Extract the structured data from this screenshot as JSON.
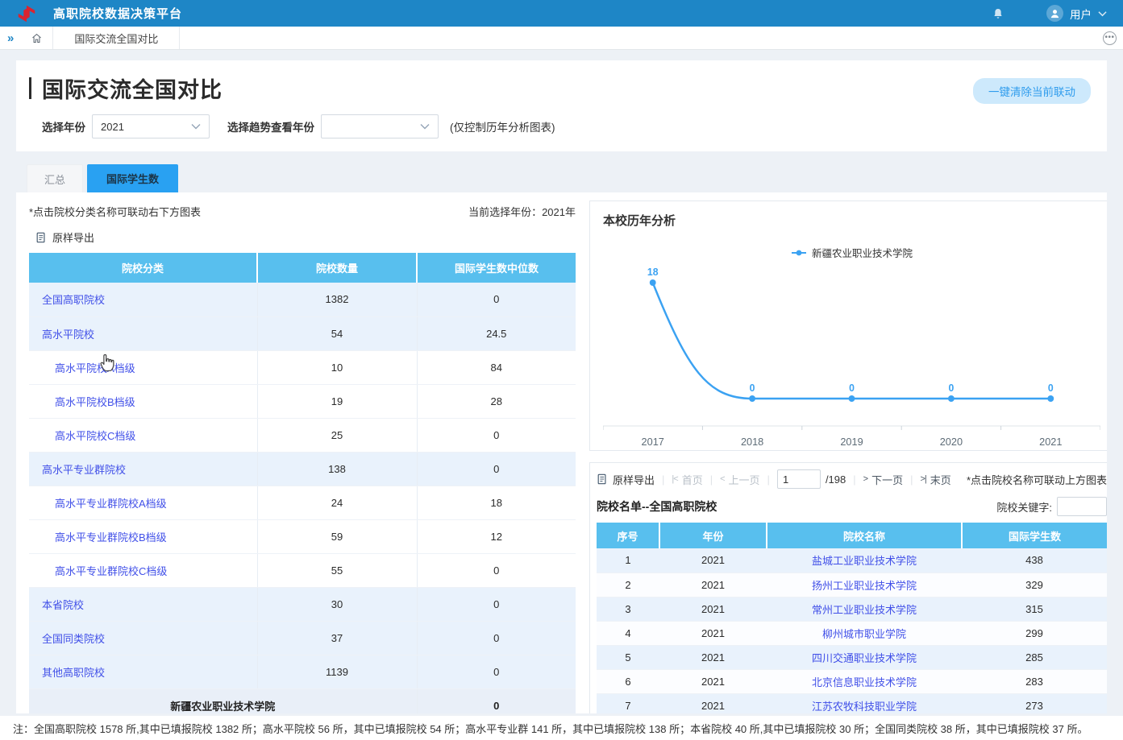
{
  "header": {
    "app_title": "高职院校数据决策平台",
    "user_label": "用户"
  },
  "nav": {
    "tab": "国际交流全国对比"
  },
  "page": {
    "title": "国际交流全国对比",
    "clear_button": "一键清除当前联动",
    "year_filter_label": "选择年份",
    "year_filter_value": "2021",
    "trend_filter_label": "选择趋势查看年份",
    "trend_filter_value": "",
    "trend_filter_hint": "(仅控制历年分析图表)"
  },
  "tabs": [
    {
      "label": "汇总",
      "active": false
    },
    {
      "label": "国际学生数",
      "active": true
    }
  ],
  "left_panel": {
    "note": "*点击院校分类名称可联动右下方图表",
    "current_year_label": "当前选择年份：2021年",
    "export_label": "原样导出",
    "table": {
      "headers": [
        "院校分类",
        "院校数量",
        "国际学生数中位数"
      ],
      "rows": [
        {
          "category": "全国高职院校",
          "count": "1382",
          "median": "0",
          "level": 0
        },
        {
          "category": "高水平院校",
          "count": "54",
          "median": "24.5",
          "level": 0
        },
        {
          "category": "高水平院校A档级",
          "count": "10",
          "median": "84",
          "level": 1
        },
        {
          "category": "高水平院校B档级",
          "count": "19",
          "median": "28",
          "level": 1
        },
        {
          "category": "高水平院校C档级",
          "count": "25",
          "median": "0",
          "level": 1
        },
        {
          "category": "高水平专业群院校",
          "count": "138",
          "median": "0",
          "level": 0
        },
        {
          "category": "高水平专业群院校A档级",
          "count": "24",
          "median": "18",
          "level": 1
        },
        {
          "category": "高水平专业群院校B档级",
          "count": "59",
          "median": "12",
          "level": 1
        },
        {
          "category": "高水平专业群院校C档级",
          "count": "55",
          "median": "0",
          "level": 1
        },
        {
          "category": "本省院校",
          "count": "30",
          "median": "0",
          "level": 0
        },
        {
          "category": "全国同类院校",
          "count": "37",
          "median": "0",
          "level": 0
        },
        {
          "category": "其他高职院校",
          "count": "1139",
          "median": "0",
          "level": 0
        }
      ],
      "summary_row": {
        "label": "新疆农业职业技术学院",
        "median": "0"
      }
    }
  },
  "chart_panel": {
    "title": "本校历年分析"
  },
  "chart_data": {
    "type": "line",
    "x": [
      "2017",
      "2018",
      "2019",
      "2020",
      "2021"
    ],
    "series": [
      {
        "name": "新疆农业职业技术学院",
        "values": [
          18,
          0,
          0,
          0,
          0
        ]
      }
    ],
    "title": "本校历年分析",
    "xlabel": "",
    "ylabel": "",
    "legend_position": "top-center",
    "grid": false,
    "smooth": true,
    "point_labels": true,
    "line_color": "#3ba2f2",
    "axis_color": "#dfe5ea",
    "tick_label_color": "#5d6b76"
  },
  "list_panel": {
    "export_label": "原样导出",
    "pager": {
      "first": "首页",
      "prev": "上一页",
      "page": "1",
      "total": "/198",
      "next": "下一页",
      "last": "末页",
      "first_icon": "|<",
      "prev_icon": "<",
      "next_icon": ">",
      "last_icon": ">|"
    },
    "note": "*点击院校名称可联动上方图表",
    "subtitle": "院校名单--全国高职院校",
    "keyword_label": "院校关键字:",
    "keyword_value": "",
    "table": {
      "headers": [
        "序号",
        "年份",
        "院校名称",
        "国际学生数"
      ],
      "rows": [
        {
          "no": "1",
          "year": "2021",
          "school": "盐城工业职业技术学院",
          "students": "438"
        },
        {
          "no": "2",
          "year": "2021",
          "school": "扬州工业职业技术学院",
          "students": "329"
        },
        {
          "no": "3",
          "year": "2021",
          "school": "常州工业职业技术学院",
          "students": "315"
        },
        {
          "no": "4",
          "year": "2021",
          "school": "柳州城市职业学院",
          "students": "299"
        },
        {
          "no": "5",
          "year": "2021",
          "school": "四川交通职业技术学院",
          "students": "285"
        },
        {
          "no": "6",
          "year": "2021",
          "school": "北京信息职业技术学院",
          "students": "283"
        },
        {
          "no": "7",
          "year": "2021",
          "school": "江苏农牧科技职业学院",
          "students": "273"
        }
      ]
    }
  },
  "footer_note": "注：全国高职院校 1578 所,其中已填报院校 1382 所；高水平院校 56 所，其中已填报院校 54 所；高水平专业群 141 所，其中已填报院校 138 所；本省院校 40 所,其中已填报院校 30 所；全国同类院校 38 所，其中已填报院校 37 所。",
  "colors": {
    "appbar": "#1e86c6",
    "table_header": "#58bfee",
    "active_tab": "#29a1f2",
    "link": "#4150e8",
    "row_tint": "#e9f2fc",
    "chart_line": "#3ba2f2",
    "clear_button_bg": "#cde9fc",
    "clear_button_text": "#2f9ced"
  }
}
